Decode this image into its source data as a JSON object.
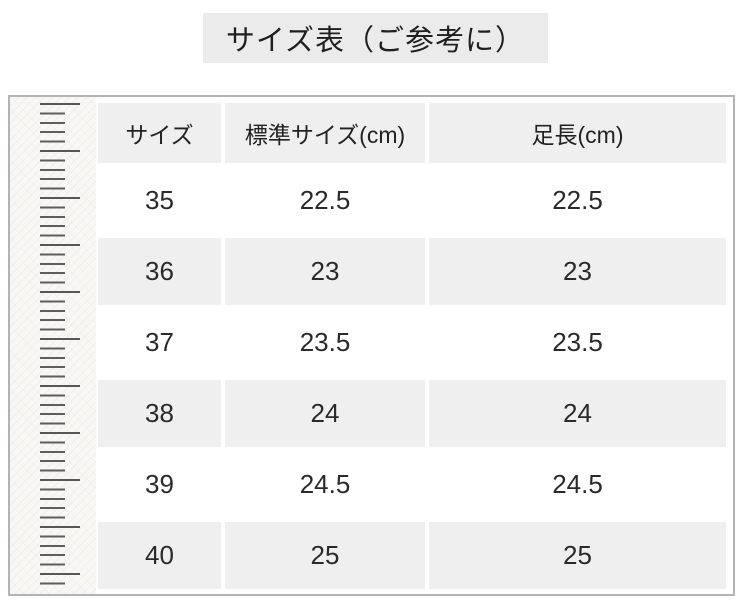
{
  "page": {
    "title": "サイズ表（ご参考に）"
  },
  "size_chart": {
    "headers": [
      "サイズ",
      "標準サイズ(cm)",
      "足長(cm)"
    ],
    "rows": [
      [
        "35",
        "22.5",
        "22.5"
      ],
      [
        "36",
        "23",
        "23"
      ],
      [
        "37",
        "23.5",
        "23.5"
      ],
      [
        "38",
        "24",
        "24"
      ],
      [
        "39",
        "24.5",
        "24.5"
      ],
      [
        "40",
        "25",
        "25"
      ]
    ]
  },
  "colors": {
    "title_bg": "#ebebeb",
    "cell_gray": "#efefef",
    "text": "#2a2a2a",
    "frame_border": "#b3b3b3",
    "ruler_bg": "#f8f7f4",
    "ruler_tick": "#5a5a5a"
  },
  "icons": {
    "ruler": "ruler-graphic"
  }
}
